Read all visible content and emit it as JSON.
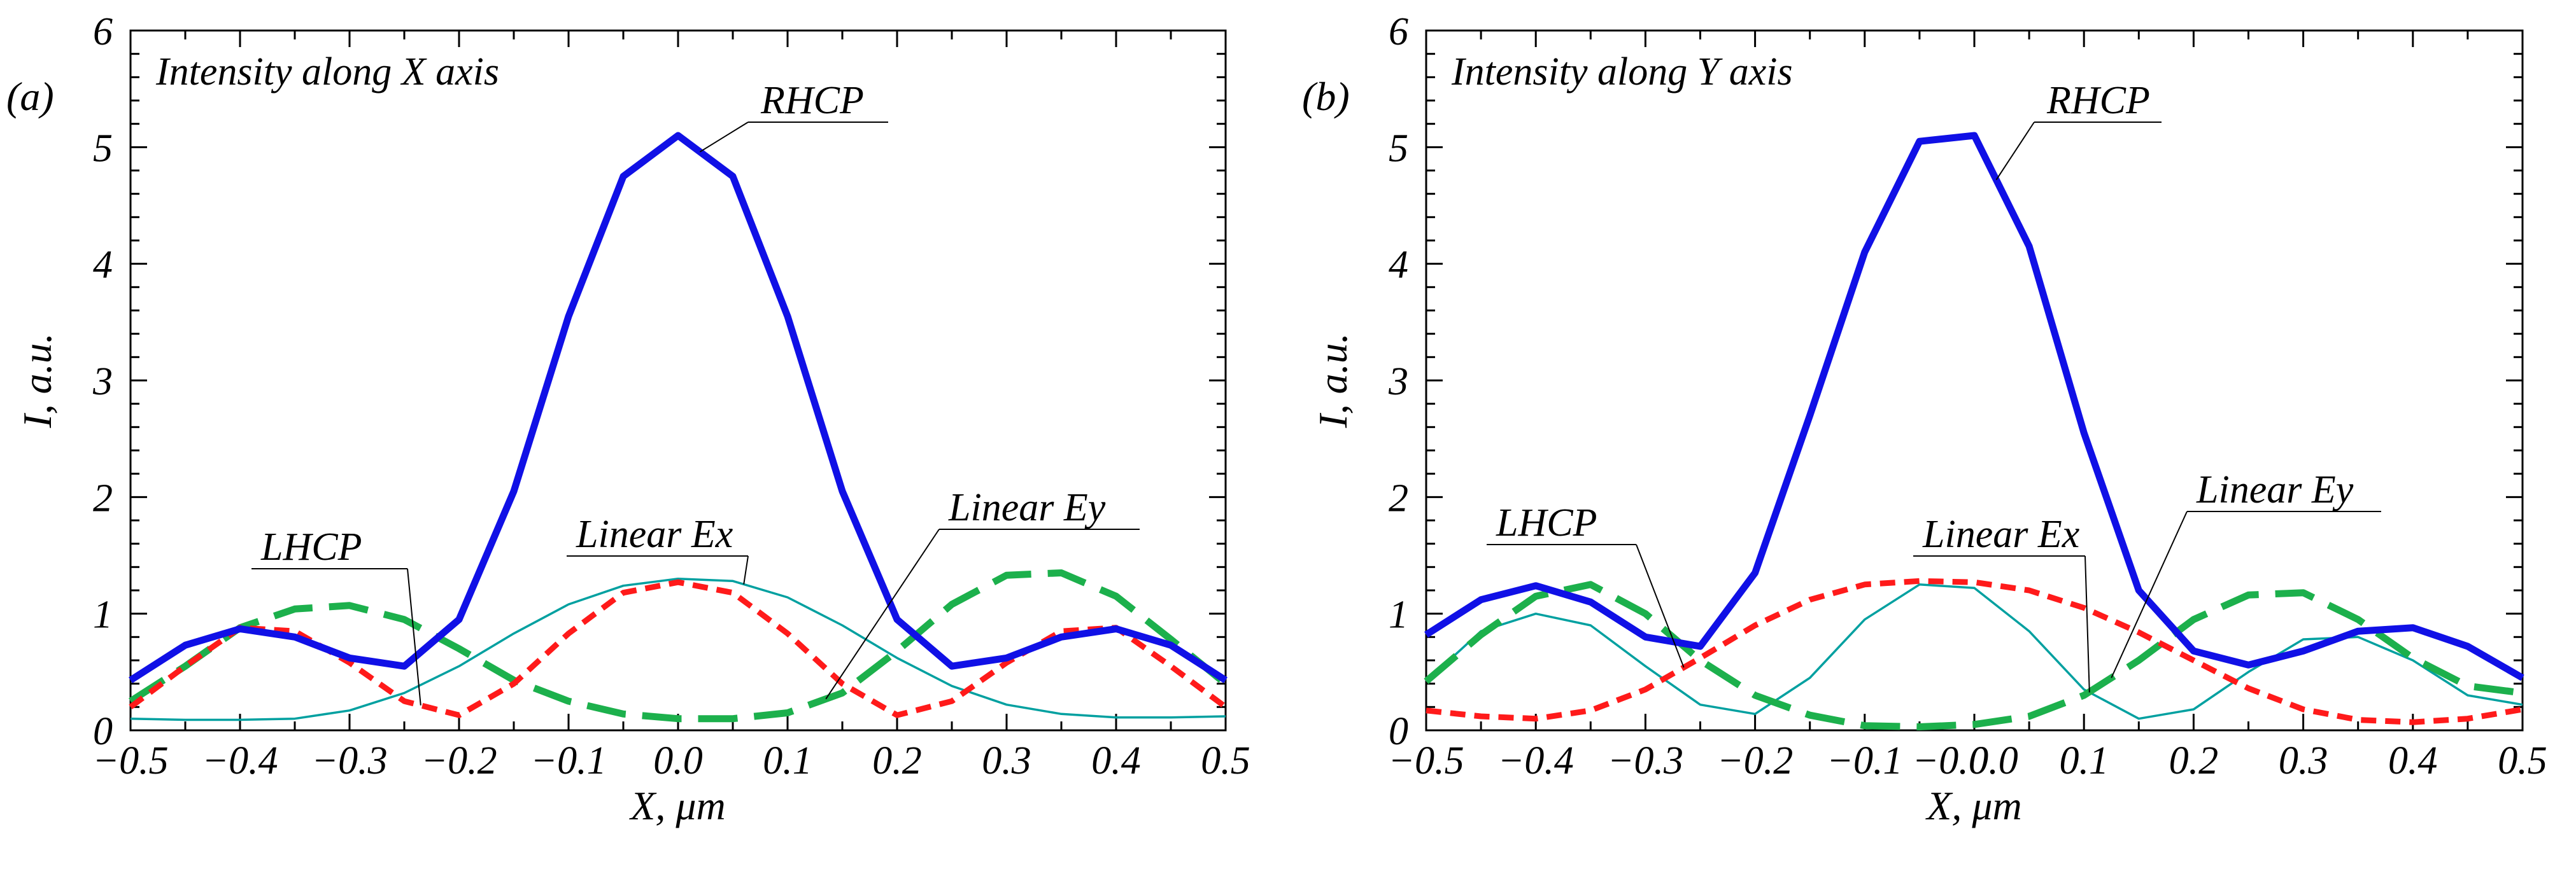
{
  "chart_data": [
    {
      "type": "line",
      "panel_label": "(a)",
      "title": "Intensity along X axis",
      "xlabel": "X, μm",
      "ylabel": "I, a.u.",
      "xlim": [
        -0.5,
        0.5
      ],
      "ylim": [
        0,
        6
      ],
      "xticks": [
        "−0.5",
        "−0.4",
        "−0.3",
        "−0.2",
        "−0.1",
        "0.0",
        "0.1",
        "0.2",
        "0.3",
        "0.4",
        "0.5"
      ],
      "yticks": [
        "0",
        "1",
        "2",
        "3",
        "4",
        "5",
        "6"
      ],
      "x": [
        -0.5,
        -0.45,
        -0.4,
        -0.35,
        -0.3,
        -0.25,
        -0.2,
        -0.15,
        -0.1,
        -0.05,
        0.0,
        0.05,
        0.1,
        0.15,
        0.2,
        0.25,
        0.3,
        0.35,
        0.4,
        0.45,
        0.5
      ],
      "series": [
        {
          "name": "RHCP",
          "color": "#1010e6",
          "style": "solid-thick",
          "values": [
            0.43,
            0.73,
            0.87,
            0.8,
            0.62,
            0.55,
            0.95,
            2.05,
            3.55,
            4.75,
            5.1,
            4.75,
            3.55,
            2.05,
            0.95,
            0.55,
            0.62,
            0.8,
            0.87,
            0.73,
            0.43
          ]
        },
        {
          "name": "LHCP",
          "color": "#ff1a1a",
          "style": "dotted",
          "values": [
            0.2,
            0.55,
            0.88,
            0.85,
            0.58,
            0.25,
            0.13,
            0.4,
            0.83,
            1.18,
            1.27,
            1.18,
            0.83,
            0.4,
            0.13,
            0.25,
            0.58,
            0.85,
            0.88,
            0.55,
            0.2
          ]
        },
        {
          "name": "Linear Ex",
          "color": "#00a0a0",
          "style": "solid-thin",
          "values": [
            0.1,
            0.09,
            0.09,
            0.1,
            0.17,
            0.32,
            0.55,
            0.83,
            1.08,
            1.24,
            1.3,
            1.28,
            1.14,
            0.9,
            0.62,
            0.38,
            0.22,
            0.14,
            0.11,
            0.11,
            0.12
          ]
        },
        {
          "name": "Linear Ey",
          "color": "#1cb04c",
          "style": "dashed",
          "values": [
            0.25,
            0.55,
            0.88,
            1.04,
            1.07,
            0.95,
            0.7,
            0.43,
            0.25,
            0.14,
            0.1,
            0.1,
            0.15,
            0.32,
            0.68,
            1.08,
            1.33,
            1.35,
            1.15,
            0.78,
            0.4
          ]
        }
      ],
      "annotations": [
        "RHCP",
        "LHCP",
        "Linear Ex",
        "Linear Ey"
      ]
    },
    {
      "type": "line",
      "panel_label": "(b)",
      "title": "Intensity along Y axis",
      "xlabel": "X, μm",
      "ylabel": "I, a.u.",
      "xlim": [
        -0.5,
        0.5
      ],
      "ylim": [
        0,
        6
      ],
      "xticks": [
        "−0.5",
        "−0.4",
        "−0.3",
        "−0.2",
        "−0.1",
        "−0.0",
        "0.0",
        "0.1",
        "0.2",
        "0.3",
        "0.4",
        "0.5"
      ],
      "xtick_values": [
        -0.5,
        -0.4,
        -0.3,
        -0.2,
        -0.1,
        -0.02,
        0.0,
        0.1,
        0.2,
        0.3,
        0.4,
        0.5
      ],
      "yticks": [
        "0",
        "1",
        "2",
        "3",
        "4",
        "5",
        "6"
      ],
      "x": [
        -0.5,
        -0.45,
        -0.4,
        -0.35,
        -0.3,
        -0.25,
        -0.2,
        -0.15,
        -0.1,
        -0.05,
        0.0,
        0.05,
        0.1,
        0.15,
        0.2,
        0.25,
        0.3,
        0.35,
        0.4,
        0.45,
        0.5
      ],
      "series": [
        {
          "name": "RHCP",
          "color": "#1010e6",
          "style": "solid-thick",
          "values": [
            0.82,
            1.12,
            1.24,
            1.1,
            0.8,
            0.72,
            1.35,
            2.7,
            4.1,
            5.05,
            5.1,
            4.15,
            2.55,
            1.2,
            0.68,
            0.56,
            0.68,
            0.85,
            0.88,
            0.72,
            0.45
          ]
        },
        {
          "name": "LHCP",
          "color": "#ff1a1a",
          "style": "dotted",
          "values": [
            0.17,
            0.12,
            0.1,
            0.17,
            0.35,
            0.62,
            0.9,
            1.12,
            1.25,
            1.28,
            1.27,
            1.2,
            1.05,
            0.84,
            0.6,
            0.36,
            0.18,
            0.09,
            0.07,
            0.1,
            0.18
          ]
        },
        {
          "name": "Linear Ex",
          "color": "#00a0a0",
          "style": "solid-thin",
          "values": [
            0.42,
            0.85,
            1.0,
            0.9,
            0.55,
            0.22,
            0.14,
            0.45,
            0.95,
            1.25,
            1.22,
            0.85,
            0.35,
            0.1,
            0.18,
            0.5,
            0.78,
            0.8,
            0.6,
            0.3,
            0.22
          ]
        },
        {
          "name": "Linear Ey",
          "color": "#1cb04c",
          "style": "dashed",
          "values": [
            0.42,
            0.82,
            1.15,
            1.25,
            1.0,
            0.6,
            0.3,
            0.13,
            0.04,
            0.03,
            0.05,
            0.12,
            0.3,
            0.6,
            0.95,
            1.16,
            1.18,
            0.95,
            0.62,
            0.38,
            0.32
          ]
        }
      ],
      "annotations": [
        "RHCP",
        "LHCP",
        "Linear Ex",
        "Linear Ey"
      ]
    }
  ]
}
